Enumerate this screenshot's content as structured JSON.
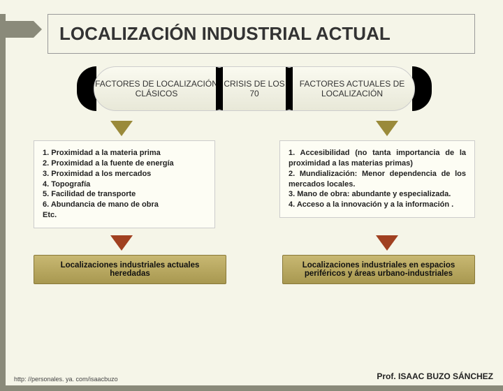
{
  "colors": {
    "page_bg": "#f5f5e8",
    "border_accent": "#8a8a7a",
    "pill_dark": "#000000",
    "arrow_olive": "#9a8a3a",
    "arrow_rust": "#a04020",
    "result_box_top": "#c8b872",
    "result_box_bottom": "#a89850",
    "text": "#333333"
  },
  "title": "LOCALIZACIÓN INDUSTRIAL ACTUAL",
  "header": {
    "p1": "FACTORES DE LOCALIZACIÓN CLÁSICOS",
    "p2": "CRISIS DE LOS 70",
    "p3": "FACTORES ACTUALES DE LOCALIZACIÓN"
  },
  "left_box": "1. Proximidad a la materia prima\n2. Proximidad a la fuente de energía\n3. Proximidad a los mercados\n4. Topografía\n5. Facilidad de transporte\n6. Abundancia de mano de obra\nEtc.",
  "right_box": "1. Accesibilidad (no tanta importancia de la proximidad a las materias primas)\n2. Mundialización: Menor dependencia de los mercados locales.\n3. Mano de obra: abundante y especializada.\n4. Acceso a la innovación y a la información .",
  "result_left": "Localizaciones industriales actuales heredadas",
  "result_right": "Localizaciones industriales en espacios periféricos y áreas urbano-industriales",
  "footer_url": "http: //personales. ya. com/isaacbuzo",
  "footer_author": "Prof. ISAAC BUZO SÁNCHEZ"
}
